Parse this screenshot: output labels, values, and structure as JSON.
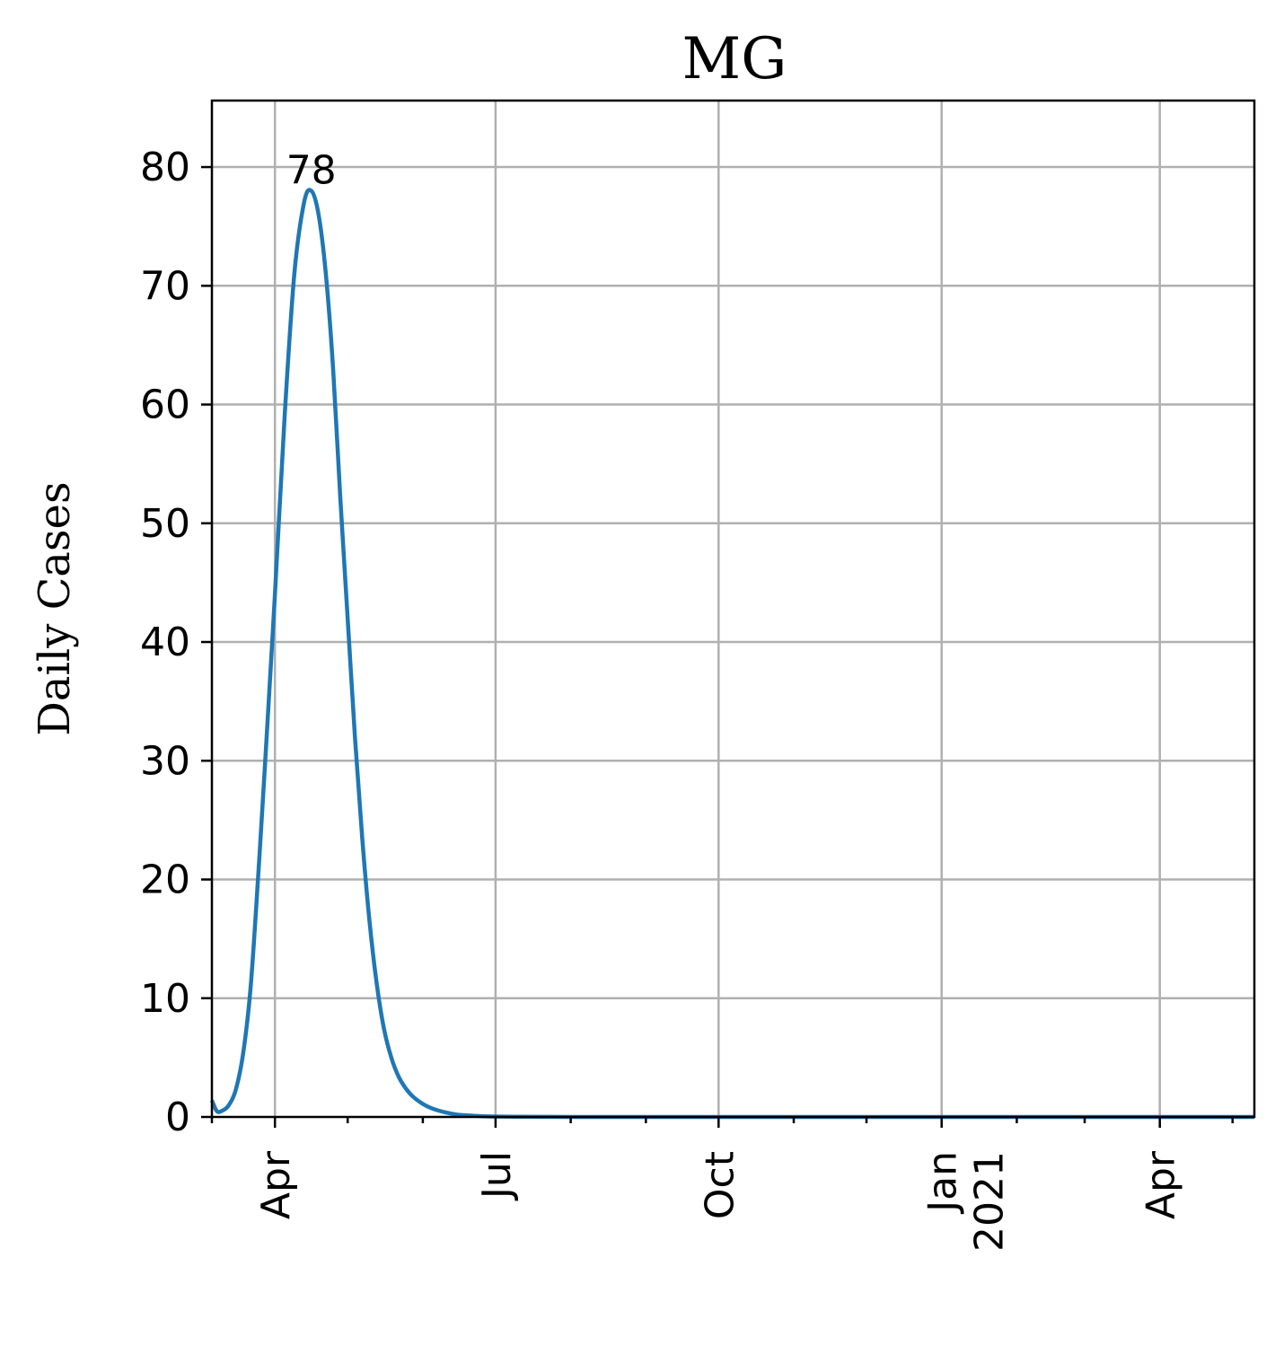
{
  "chart_data": {
    "type": "line",
    "title": "MG",
    "xlabel": "",
    "ylabel": "Daily Cases",
    "x_type": "date",
    "xlim": [
      "2020-03-06",
      "2021-05-10"
    ],
    "ylim": [
      0,
      85.6
    ],
    "yticks": [
      0,
      10,
      20,
      30,
      40,
      50,
      60,
      70,
      80
    ],
    "xticks": [
      {
        "date": "2020-04-01",
        "label": "Apr"
      },
      {
        "date": "2020-07-01",
        "label": "Jul"
      },
      {
        "date": "2020-10-01",
        "label": "Oct"
      },
      {
        "date": "2021-01-01",
        "label": "Jan",
        "label2": "2021"
      },
      {
        "date": "2021-04-01",
        "label": "Apr"
      }
    ],
    "minor_xticks": [
      "2020-05-01",
      "2020-06-01",
      "2020-08-01",
      "2020-09-01",
      "2020-11-01",
      "2020-12-01",
      "2021-02-01",
      "2021-03-01",
      "2021-05-01"
    ],
    "grid": true,
    "series": [
      {
        "color": "#1f77b4",
        "x": [
          "2020-03-06",
          "2020-03-08",
          "2020-03-10",
          "2020-03-13",
          "2020-03-16",
          "2020-03-19",
          "2020-03-22",
          "2020-03-25",
          "2020-03-28",
          "2020-04-01",
          "2020-04-05",
          "2020-04-09",
          "2020-04-13",
          "2020-04-16",
          "2020-04-19",
          "2020-04-22",
          "2020-04-25",
          "2020-04-28",
          "2020-05-01",
          "2020-05-04",
          "2020-05-07",
          "2020-05-10",
          "2020-05-13",
          "2020-05-16",
          "2020-05-19",
          "2020-05-22",
          "2020-05-25",
          "2020-05-28",
          "2020-06-01",
          "2020-06-05",
          "2020-06-10",
          "2020-06-15",
          "2020-06-20",
          "2020-06-25",
          "2020-07-01",
          "2020-07-10",
          "2020-07-20",
          "2020-08-01",
          "2020-09-01",
          "2020-10-01",
          "2020-11-01",
          "2020-12-01",
          "2021-01-01",
          "2021-02-01",
          "2021-03-01",
          "2021-04-01",
          "2021-05-10"
        ],
        "y": [
          1.4,
          0.5,
          0.5,
          1.0,
          2.4,
          5.5,
          11.0,
          20.0,
          30.0,
          44.0,
          59.0,
          71.0,
          77.0,
          78.0,
          76.0,
          71.0,
          63.0,
          52.0,
          42.0,
          32.0,
          23.5,
          16.5,
          11.2,
          7.4,
          5.0,
          3.4,
          2.4,
          1.7,
          1.1,
          0.7,
          0.4,
          0.2,
          0.12,
          0.07,
          0.04,
          0.02,
          0.01,
          0.0,
          0.0,
          0.0,
          0.0,
          0.0,
          0.0,
          0.0,
          0.0,
          0.0,
          0.0
        ]
      }
    ],
    "annotations": [
      {
        "text": "78",
        "x": "2020-04-16",
        "y": 78
      }
    ]
  }
}
